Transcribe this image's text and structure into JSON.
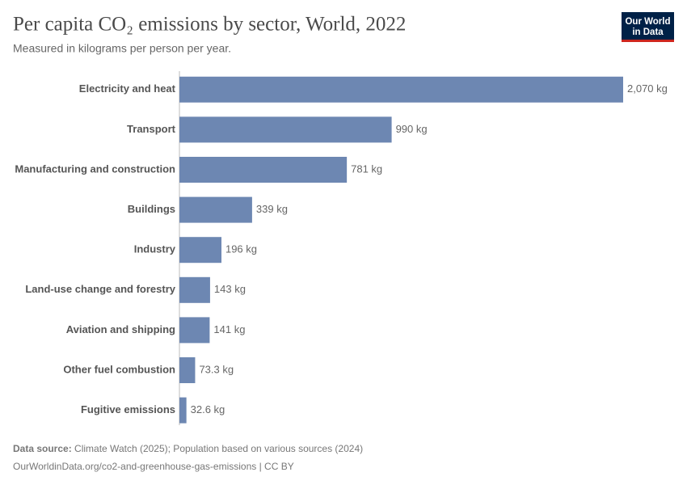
{
  "chart_data": {
    "type": "bar",
    "orientation": "horizontal",
    "title": "Per capita CO₂ emissions by sector, World, 2022",
    "subtitle": "Measured in kilograms per person per year.",
    "categories": [
      "Electricity and heat",
      "Transport",
      "Manufacturing and construction",
      "Buildings",
      "Industry",
      "Land-use change and forestry",
      "Aviation and shipping",
      "Other fuel combustion",
      "Fugitive emissions"
    ],
    "values": [
      2070,
      990,
      781,
      339,
      196,
      143,
      141,
      73.3,
      32.6
    ],
    "value_labels": [
      "2,070 kg",
      "990 kg",
      "781 kg",
      "339 kg",
      "196 kg",
      "143 kg",
      "141 kg",
      "73.3 kg",
      "32.6 kg"
    ],
    "color": "#6d87b2",
    "source_label": "Data source:",
    "source": "Climate Watch (2025); Population based on various sources (2024)",
    "url_line": "OurWorldinData.org/co2-and-greenhouse-gas-emissions | CC BY",
    "logo": [
      "Our World",
      "in Data"
    ]
  }
}
